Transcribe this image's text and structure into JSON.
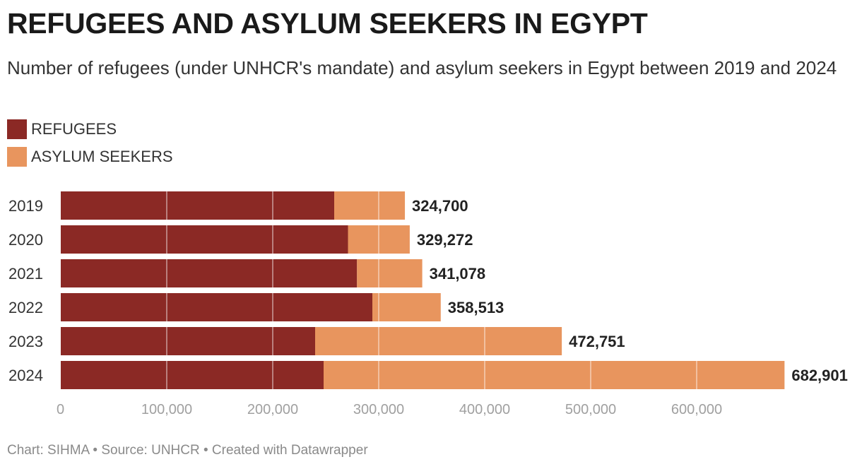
{
  "header": {
    "title": "REFUGEES AND ASYLUM SEEKERS IN EGYPT",
    "subtitle": "Number of refugees (under UNHCR's mandate) and asylum seekers in Egypt between 2019 and 2024"
  },
  "legend": [
    {
      "label": "REFUGEES",
      "color": "#8b2925"
    },
    {
      "label": "ASYLUM SEEKERS",
      "color": "#e8955e"
    }
  ],
  "chart_data": {
    "type": "bar",
    "orientation": "horizontal",
    "stacked": true,
    "categories": [
      "2019",
      "2020",
      "2021",
      "2022",
      "2023",
      "2024"
    ],
    "series": [
      {
        "name": "REFUGEES",
        "color": "#8b2925",
        "values": [
          258000,
          271000,
          279500,
          294000,
          240000,
          248000
        ]
      },
      {
        "name": "ASYLUM SEEKERS",
        "color": "#e8955e",
        "values": [
          66700,
          58272,
          61578,
          64513,
          232751,
          434901
        ]
      }
    ],
    "total_labels": [
      "324,700",
      "329,272",
      "341,078",
      "358,513",
      "472,751",
      "682,901"
    ],
    "xlim": [
      0,
      700000
    ],
    "x_ticks": [
      0,
      100000,
      200000,
      300000,
      400000,
      500000,
      600000
    ],
    "x_tick_labels": [
      "0",
      "100,000",
      "200,000",
      "300,000",
      "400,000",
      "500,000",
      "600,000"
    ],
    "grid": true
  },
  "footer": {
    "credit": "Chart: SIHMA • Source: UNHCR • Created with Datawrapper"
  }
}
